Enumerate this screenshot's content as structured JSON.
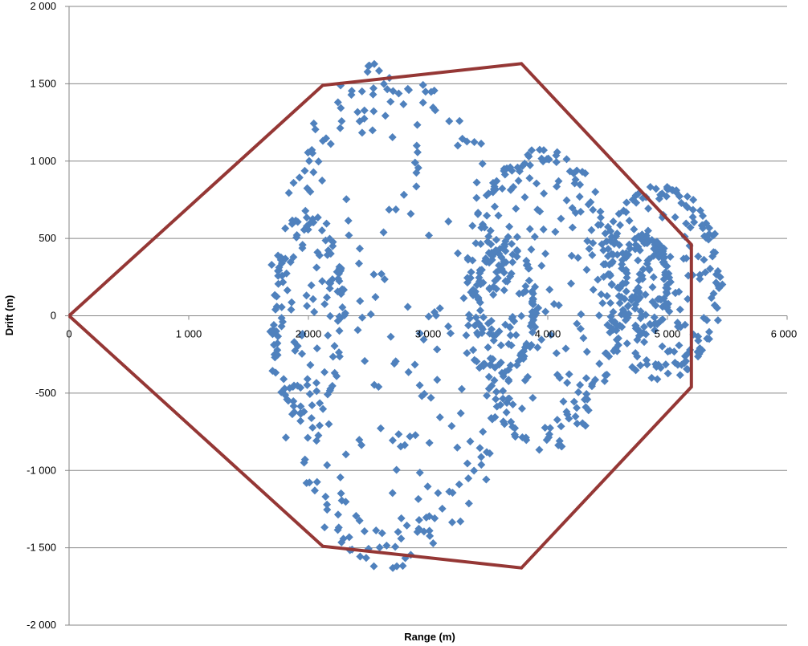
{
  "chart_data": {
    "type": "scatter",
    "title": "",
    "xlabel": "Range (m)",
    "ylabel": "Drift (m)",
    "xlim": [
      0,
      6000
    ],
    "ylim": [
      -2000,
      2000
    ],
    "x_ticks": [
      0,
      1000,
      2000,
      3000,
      4000,
      5000,
      6000
    ],
    "x_tick_labels": [
      "0",
      "1 000",
      "2 000",
      "3 000",
      "4 000",
      "5 000",
      "6 000"
    ],
    "y_ticks": [
      2000,
      1500,
      1000,
      500,
      0,
      -500,
      -1000,
      -1500,
      -2000
    ],
    "y_tick_labels": [
      "2 000",
      "1 500",
      "1 000",
      "500",
      "0",
      "-500",
      "-1 000",
      "-1 500",
      "-2 000"
    ],
    "grid": "horizontal",
    "legend": "none",
    "colors": {
      "points": "#4f81bd",
      "boundary": "#953735",
      "grid": "#868686",
      "axis": "#868686"
    },
    "boundary": {
      "x": [
        0,
        2120,
        3780,
        5200,
        5200,
        3780,
        2120,
        0
      ],
      "y": [
        0,
        1490,
        1630,
        460,
        -460,
        -1630,
        -1490,
        0
      ]
    },
    "clusters": [
      {
        "cx": 2700,
        "cy": 0,
        "rx": 1000,
        "ry": 1600,
        "ring_points": 190,
        "fill_points": 130,
        "seed": 11
      },
      {
        "cx": 2000,
        "cy": 0,
        "rx": 300,
        "ry": 650,
        "ring_points": 70,
        "fill_points": 30,
        "seed": 23
      },
      {
        "cx": 3950,
        "cy": 100,
        "rx": 650,
        "ry": 950,
        "ring_points": 150,
        "fill_points": 100,
        "seed": 37
      },
      {
        "cx": 3650,
        "cy": 50,
        "rx": 250,
        "ry": 420,
        "ring_points": 80,
        "fill_points": 20,
        "seed": 41
      },
      {
        "cx": 4950,
        "cy": 220,
        "rx": 500,
        "ry": 620,
        "ring_points": 130,
        "fill_points": 70,
        "seed": 53
      },
      {
        "cx": 4800,
        "cy": 200,
        "rx": 220,
        "ry": 320,
        "ring_points": 70,
        "fill_points": 50,
        "seed": 67
      }
    ]
  }
}
